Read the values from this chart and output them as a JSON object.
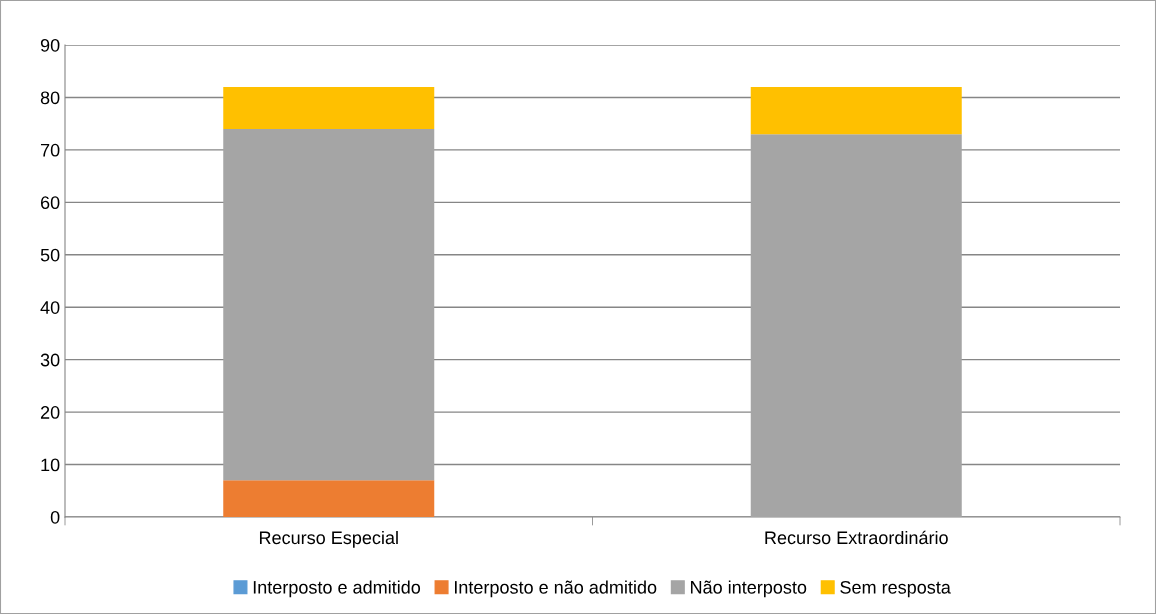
{
  "chart_data": {
    "type": "bar",
    "stacked": true,
    "categories": [
      "Recurso Especial",
      "Recurso Extraordinário"
    ],
    "series": [
      {
        "name": "Interposto e admitido",
        "color": "#5b9bd5",
        "values": [
          0,
          0
        ]
      },
      {
        "name": "Interposto e não admitido",
        "color": "#ed7d31",
        "values": [
          7,
          0
        ]
      },
      {
        "name": "Não interposto",
        "color": "#a5a5a5",
        "values": [
          67,
          73
        ]
      },
      {
        "name": "Sem resposta",
        "color": "#ffc000",
        "values": [
          8,
          9
        ]
      }
    ],
    "ylim": [
      0,
      90
    ],
    "yticks": [
      0,
      10,
      20,
      30,
      40,
      50,
      60,
      70,
      80,
      90
    ],
    "grid": "y",
    "legend": "bottom"
  }
}
